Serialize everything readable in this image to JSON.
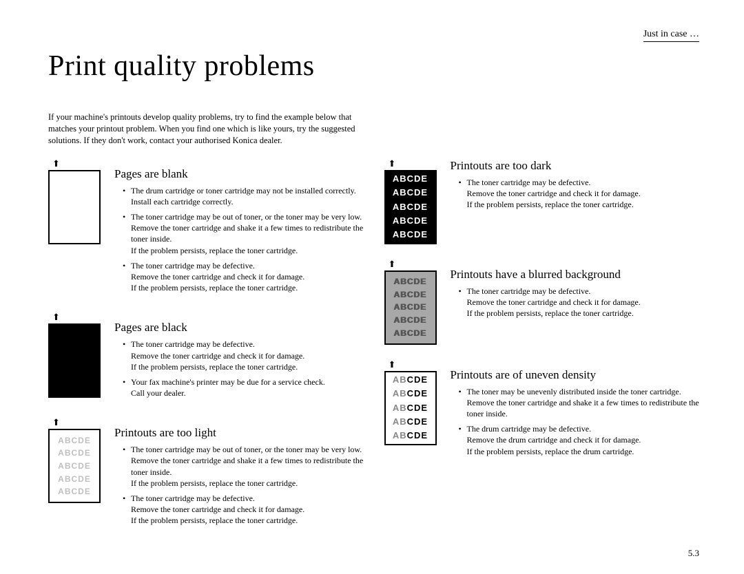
{
  "header_label": "Just in case …",
  "title": "Print quality problems",
  "intro": "If your machine's printouts develop quality problems, try to find the example below that matches your printout problem. When you find one which is like yours, try the suggested solutions. If they don't work, contact your authorised Konica dealer.",
  "page_number": "5.3",
  "sample_text": "ABCDE",
  "colors": {
    "text": "#000000",
    "bg": "#ffffff",
    "light_text": "#bfbfbf",
    "blur_bg": "#a8a8a8",
    "blur_text": "#555555",
    "uneven_light": "#888888"
  },
  "left": [
    {
      "title": "Pages are blank",
      "sample": "blank",
      "items": [
        {
          "cause": "The drum cartridge or toner cartridge may not be installed correctly.",
          "fix": "Install each cartridge correctly."
        },
        {
          "cause": "The toner cartridge may be out of toner, or the toner may be very low.",
          "fix": "Remove the toner cartridge and shake it a few times to redistribute the toner inside.\nIf the problem persists, replace the toner cartridge."
        },
        {
          "cause": "The toner cartridge may be defective.",
          "fix": "Remove the toner cartridge and check it for damage.\nIf the problem persists, replace the toner cartridge."
        }
      ]
    },
    {
      "title": "Pages are black",
      "sample": "black",
      "items": [
        {
          "cause": "The toner cartridge may be defective.",
          "fix": "Remove the toner cartridge and check it for damage.\nIf the problem persists, replace the toner cartridge."
        },
        {
          "cause": "Your fax machine's printer may be due for a service check.",
          "fix": "Call your dealer."
        }
      ]
    },
    {
      "title": "Printouts are too light",
      "sample": "light",
      "items": [
        {
          "cause": "The toner cartridge may be out of toner, or the toner may be very low.",
          "fix": "Remove the toner cartridge and shake it a few times to redistribute the toner inside.\nIf the problem persists, replace the toner cartridge."
        },
        {
          "cause": "The toner cartridge may be defective.",
          "fix": "Remove the toner cartridge and check it for damage.\nIf the problem persists, replace the toner cartridge."
        }
      ]
    }
  ],
  "right": [
    {
      "title": "Printouts are too dark",
      "sample": "dark",
      "items": [
        {
          "cause": "The toner cartridge may be defective.",
          "fix": "Remove the toner cartridge and check it for damage.\nIf the problem persists, replace the toner cartridge."
        }
      ]
    },
    {
      "title": "Printouts have a blurred background",
      "sample": "blur",
      "items": [
        {
          "cause": "The toner cartridge may be defective.",
          "fix": "Remove the toner cartridge and check it for damage.\nIf the problem persists, replace the toner cartridge."
        }
      ]
    },
    {
      "title": "Printouts are of uneven density",
      "sample": "uneven",
      "items": [
        {
          "cause": "The toner may be unevenly distributed inside the toner cartridge.",
          "fix": "Remove the toner cartridge and shake it a few times to redistribute the toner inside."
        },
        {
          "cause": "The drum cartridge may be defective.",
          "fix": "Remove the drum cartridge and check it for damage.\nIf the problem persists, replace the drum cartridge."
        }
      ]
    }
  ]
}
